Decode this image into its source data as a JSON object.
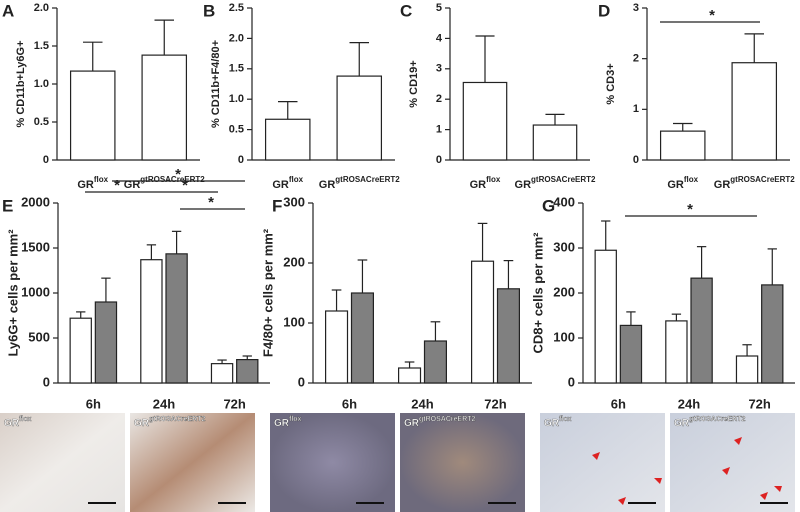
{
  "chart_data": [
    {
      "type": "bar",
      "panel_label": "A",
      "y_label": "% CD11b+Ly6G+",
      "categories": [
        "GR",
        "GR"
      ],
      "category_superscripts": [
        "flox",
        "gtROSACreERT2"
      ],
      "values": [
        1.17,
        1.38
      ],
      "errors": [
        0.38,
        0.46
      ],
      "color": "#ffffff",
      "ylim": [
        0,
        2
      ],
      "yticks": [
        0,
        0.5,
        {
          "value": 1,
          "label": "1.0"
        },
        1.5,
        {
          "value": 2,
          "label": "2.0"
        }
      ]
    },
    {
      "type": "bar",
      "panel_label": "B",
      "y_label": "% CD11b+F4/80+",
      "categories": [
        "GR",
        "GR"
      ],
      "category_superscripts": [
        "flox",
        "gtROSACreERT2"
      ],
      "values": [
        0.67,
        1.38
      ],
      "errors": [
        0.29,
        0.55
      ],
      "color": "#ffffff",
      "ylim": [
        0,
        2.5
      ],
      "yticks": [
        0,
        0.5,
        {
          "value": 1,
          "label": "1.0"
        },
        1.5,
        {
          "value": 2,
          "label": "2.0"
        },
        2.5
      ]
    },
    {
      "type": "bar",
      "panel_label": "C",
      "y_label": "% CD19+",
      "categories": [
        "GR",
        "GR"
      ],
      "category_superscripts": [
        "flox",
        "gtROSACreERT2"
      ],
      "values": [
        2.55,
        1.15
      ],
      "errors": [
        1.53,
        0.35
      ],
      "color": "#ffffff",
      "ylim": [
        0,
        5
      ],
      "yticks": [
        0,
        1,
        2,
        3,
        4,
        5
      ]
    },
    {
      "type": "bar",
      "panel_label": "D",
      "y_label": "% CD3+",
      "categories": [
        "GR",
        "GR"
      ],
      "category_superscripts": [
        "flox",
        "gtROSACreERT2"
      ],
      "values": [
        0.57,
        1.92
      ],
      "errors": [
        0.15,
        0.57
      ],
      "color": "#ffffff",
      "ylim": [
        0,
        3
      ],
      "yticks": [
        0,
        1,
        2,
        3
      ],
      "significance": [
        "*"
      ]
    },
    {
      "type": "bar",
      "panel_label": "E",
      "y_label": "Ly6G+ cells per mm²",
      "categories": [
        "6h",
        "24h",
        "72h"
      ],
      "series": [
        {
          "color": "#ffffff",
          "values": [
            720,
            1370,
            215
          ],
          "errors": [
            70,
            165,
            40
          ]
        },
        {
          "color": "#808080",
          "values": [
            900,
            1435,
            260
          ],
          "errors": [
            265,
            250,
            40
          ]
        }
      ],
      "ylim": [
        0,
        2000
      ],
      "yticks": [
        0,
        500,
        1000,
        1500,
        2000
      ],
      "significance": [
        "*",
        "*",
        "*",
        "*"
      ]
    },
    {
      "type": "bar",
      "panel_label": "F",
      "y_label": "F4/80+ cells per mm²",
      "categories": [
        "6h",
        "24h",
        "72h"
      ],
      "series": [
        {
          "color": "#ffffff",
          "values": [
            120,
            25,
            203
          ],
          "errors": [
            35,
            10,
            63
          ]
        },
        {
          "color": "#808080",
          "values": [
            150,
            70,
            157
          ],
          "errors": [
            55,
            32,
            47
          ]
        }
      ],
      "ylim": [
        0,
        300
      ],
      "yticks": [
        0,
        100,
        200,
        300
      ]
    },
    {
      "type": "bar",
      "panel_label": "G",
      "y_label": "CD8+ cells per mm²",
      "categories": [
        "6h",
        "24h",
        "72h"
      ],
      "series": [
        {
          "color": "#ffffff",
          "values": [
            295,
            138,
            60
          ],
          "errors": [
            65,
            15,
            25
          ]
        },
        {
          "color": "#808080",
          "values": [
            128,
            233,
            218
          ],
          "errors": [
            30,
            70,
            80
          ]
        }
      ],
      "ylim": [
        0,
        400
      ],
      "yticks": [
        0,
        100,
        200,
        300,
        400
      ],
      "significance": [
        "*"
      ]
    }
  ],
  "images": [
    {
      "label": "GR",
      "label_superscript": "flox"
    },
    {
      "label": "GR",
      "label_superscript": "gtROSACreERT2"
    },
    {
      "label": "GR",
      "label_superscript": "flox"
    },
    {
      "label": "GR",
      "label_superscript": "gtROSACreERT2"
    },
    {
      "label": "GR",
      "label_superscript": "flox"
    },
    {
      "label": "GR",
      "label_superscript": "gtROSACreERT2"
    }
  ]
}
